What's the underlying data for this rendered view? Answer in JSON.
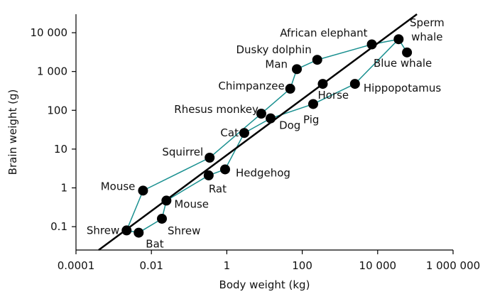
{
  "chart_data": {
    "type": "scatter",
    "xscale": "log",
    "yscale": "log",
    "xlabel": "Body weight (kg)",
    "ylabel": "Brain weight (g)",
    "xlim": [
      0.0001,
      1000000
    ],
    "ylim": [
      0.025,
      30000
    ],
    "xticks": [
      {
        "value": 0.0001,
        "label": "0.0001"
      },
      {
        "value": 0.01,
        "label": "0.01"
      },
      {
        "value": 1,
        "label": "1"
      },
      {
        "value": 100,
        "label": "100"
      },
      {
        "value": 10000,
        "label": "10 000"
      },
      {
        "value": 1000000,
        "label": "1 000 000"
      }
    ],
    "yticks": [
      {
        "value": 0.1,
        "label": "0.1"
      },
      {
        "value": 1,
        "label": "1"
      },
      {
        "value": 10,
        "label": "10"
      },
      {
        "value": 100,
        "label": "100"
      },
      {
        "value": 1000,
        "label": "1 000"
      },
      {
        "value": 10000,
        "label": "10 000"
      }
    ],
    "grid": false,
    "legend": "none",
    "colors": {
      "points": "#000000",
      "connectors": "#1a9090",
      "trend": "#000000"
    },
    "trend_line": {
      "x": [
        0.0004,
        110000
      ],
      "y": [
        0.025,
        30000
      ]
    },
    "points": [
      {
        "label": "Shrew",
        "x": 0.0022,
        "y": 0.08
      },
      {
        "label": "Bat",
        "x": 0.0046,
        "y": 0.07
      },
      {
        "label": "Shrew",
        "x": 0.019,
        "y": 0.16
      },
      {
        "label": "Mouse",
        "x": 0.025,
        "y": 0.47
      },
      {
        "label": "Mouse",
        "x": 0.006,
        "y": 0.85
      },
      {
        "label": "Rat",
        "x": 0.33,
        "y": 2.1
      },
      {
        "label": "Hedgehog",
        "x": 0.9,
        "y": 3.0
      },
      {
        "label": "Squirrel",
        "x": 0.35,
        "y": 6.0
      },
      {
        "label": "Cat",
        "x": 2.9,
        "y": 26
      },
      {
        "label": "Rhesus monkey",
        "x": 8.2,
        "y": 82
      },
      {
        "label": "Dog",
        "x": 14.5,
        "y": 62
      },
      {
        "label": "Pig",
        "x": 195,
        "y": 145
      },
      {
        "label": "Chimpanzee",
        "x": 48,
        "y": 360
      },
      {
        "label": "Horse",
        "x": 350,
        "y": 480
      },
      {
        "label": "Hippopotamus",
        "x": 2500,
        "y": 480
      },
      {
        "label": "Man",
        "x": 72,
        "y": 1150
      },
      {
        "label": "Dusky dolphin",
        "x": 250,
        "y": 2000
      },
      {
        "label": "African elephant",
        "x": 7000,
        "y": 5000
      },
      {
        "label": "Sperm whale",
        "x": 36000,
        "y": 6800
      },
      {
        "label": "Blue whale",
        "x": 60000,
        "y": 3100
      }
    ],
    "connectors": [
      [
        0,
        1
      ],
      [
        1,
        2
      ],
      [
        2,
        3
      ],
      [
        3,
        5
      ],
      [
        5,
        6
      ],
      [
        6,
        8
      ],
      [
        8,
        10
      ],
      [
        10,
        11
      ],
      [
        11,
        14
      ],
      [
        14,
        18
      ],
      [
        18,
        19
      ],
      [
        0,
        4
      ],
      [
        4,
        7
      ],
      [
        7,
        9
      ],
      [
        9,
        12
      ],
      [
        12,
        15
      ],
      [
        15,
        16
      ],
      [
        16,
        17
      ],
      [
        17,
        18
      ]
    ]
  }
}
